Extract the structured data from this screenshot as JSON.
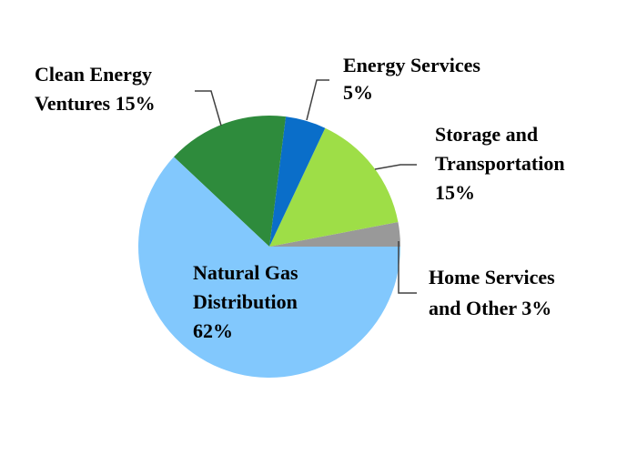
{
  "chart_data": {
    "type": "pie",
    "start_angle_deg": 0,
    "direction": "counterclockwise",
    "slices": [
      {
        "key": "home",
        "label_lines": [
          "Home Services",
          "and Other 3%"
        ],
        "value": 3,
        "color": "#999999"
      },
      {
        "key": "storage",
        "label_lines": [
          "Storage and",
          "Transportation",
          "15%"
        ],
        "value": 15,
        "color": "#9ede47"
      },
      {
        "key": "energy_services",
        "label_lines": [
          "Energy Services",
          "5%"
        ],
        "value": 5,
        "color": "#0a6ec9"
      },
      {
        "key": "clean_energy",
        "label_lines": [
          "Clean Energy",
          "Ventures 15%"
        ],
        "value": 15,
        "color": "#2e8b3c"
      },
      {
        "key": "natural_gas",
        "label_lines": [
          "Natural Gas",
          "Distribution",
          "62%"
        ],
        "value": 62,
        "color": "#82c8fd"
      }
    ]
  }
}
